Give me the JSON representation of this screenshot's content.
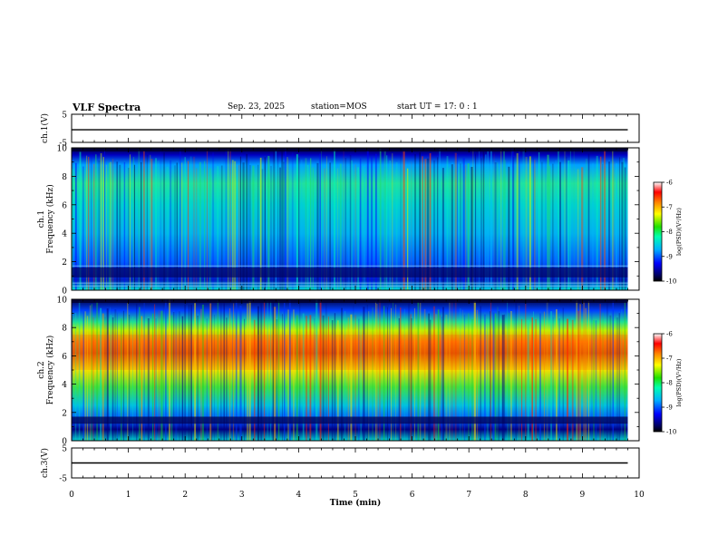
{
  "header": {
    "title": "VLF Spectra",
    "date": "Sep. 23, 2025",
    "station": "station=MOS",
    "start": "start UT =   17: 0  : 1"
  },
  "chart_data": [
    {
      "type": "line",
      "panel": "ch1-waveform",
      "ylabel": "ch.1(V)",
      "ylim": [
        -5,
        5
      ],
      "yticks": [
        "5",
        "-5"
      ],
      "x": [
        0,
        9.8
      ],
      "values": [
        -0.5,
        -0.5
      ]
    },
    {
      "type": "heatmap",
      "panel": "ch1-spectrogram",
      "ylabel": "ch.1\nFrequency (kHz)",
      "ylim": [
        0,
        10
      ],
      "yticks": [
        "0",
        "2",
        "4",
        "6",
        "8",
        "10"
      ],
      "xlim": [
        0,
        10
      ],
      "data_extent_min": 9.8,
      "colorbar": {
        "label": "log(PSD)(V²/Hz)",
        "range": [
          -10,
          -6
        ],
        "ticks": [
          "-6",
          "-7",
          "-8",
          "-9",
          "-10"
        ]
      },
      "bands_kHz": [
        0.3,
        0.5,
        1.7
      ]
    },
    {
      "type": "heatmap",
      "panel": "ch2-spectrogram",
      "ylabel": "ch.2\nFrequency (kHz)",
      "ylim": [
        0,
        10
      ],
      "yticks": [
        "0",
        "2",
        "4",
        "6",
        "8",
        "10"
      ],
      "xlim": [
        0,
        10
      ],
      "data_extent_min": 9.8,
      "colorbar": {
        "label": "log(PSD)(V²/Hz)",
        "range": [
          -10,
          -6
        ],
        "ticks": [
          "-6",
          "-7",
          "-8",
          "-9",
          "-10"
        ]
      },
      "peak_band_kHz": [
        5,
        7.5
      ]
    },
    {
      "type": "line",
      "panel": "ch3-waveform",
      "ylabel": "ch.3(V)",
      "ylim": [
        -5,
        5
      ],
      "yticks": [
        "5",
        "-5"
      ],
      "x": [
        0,
        9.8
      ],
      "values": [
        0,
        0
      ]
    }
  ],
  "xaxis": {
    "label": "Time (min)",
    "ticks": [
      "0",
      "1",
      "2",
      "3",
      "4",
      "5",
      "6",
      "7",
      "8",
      "9",
      "10"
    ]
  }
}
